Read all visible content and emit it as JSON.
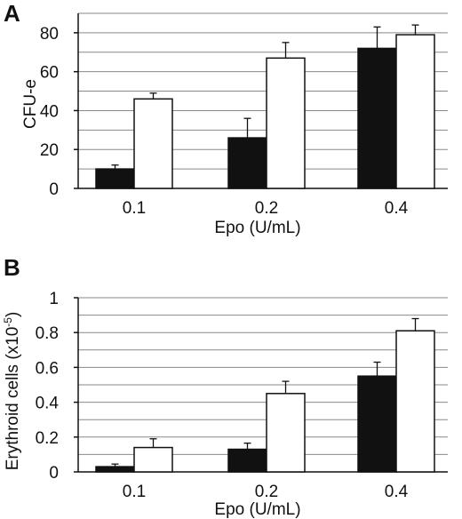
{
  "chart_data": [
    {
      "type": "bar",
      "panel_label": "A",
      "xlabel": "Epo (U/mL)",
      "ylabel": "CFU-e",
      "categories": [
        "0.1",
        "0.2",
        "0.4"
      ],
      "ylim": [
        0,
        90
      ],
      "yticks": [
        "0",
        "20",
        "40",
        "60",
        "80"
      ],
      "ytick_values": [
        0,
        20,
        40,
        60,
        80
      ],
      "grid_step": 10,
      "grid": true,
      "legend": "none",
      "series": [
        {
          "fill": "#111111",
          "values": [
            10,
            26,
            72
          ],
          "errors": [
            2,
            10,
            11
          ]
        },
        {
          "fill": "#ffffff",
          "values": [
            46,
            67,
            79
          ],
          "errors": [
            3,
            8,
            5
          ]
        }
      ]
    },
    {
      "type": "bar",
      "panel_label": "B",
      "xlabel": "Epo (U/mL)",
      "ylabel": "Erythroid cells (x10",
      "ylabel_sup": "-5",
      "ylabel_close": ")",
      "categories": [
        "0.1",
        "0.2",
        "0.4"
      ],
      "ylim": [
        0,
        1
      ],
      "yticks": [
        "0",
        "0.2",
        "0.4",
        "0.6",
        "0.8",
        "1"
      ],
      "ytick_values": [
        0,
        0.2,
        0.4,
        0.6,
        0.8,
        1
      ],
      "grid_step": 0.1,
      "grid": true,
      "legend": "none",
      "series": [
        {
          "fill": "#111111",
          "values": [
            0.03,
            0.13,
            0.55
          ],
          "errors": [
            0.015,
            0.035,
            0.08
          ]
        },
        {
          "fill": "#ffffff",
          "values": [
            0.14,
            0.45,
            0.81
          ],
          "errors": [
            0.05,
            0.07,
            0.07
          ]
        }
      ]
    }
  ]
}
